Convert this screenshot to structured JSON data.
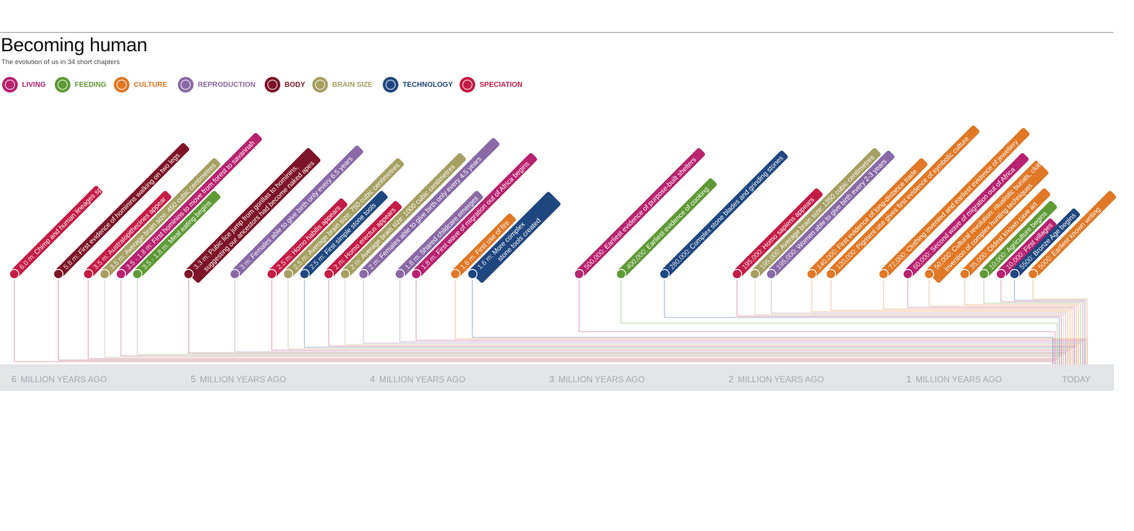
{
  "header": {
    "title": "Becoming human",
    "subtitle": "The evolution of us in 34 short chapters"
  },
  "legend": [
    {
      "label": "LIVING",
      "color": "#b8226f",
      "icon": "people-icon"
    },
    {
      "label": "FEEDING",
      "color": "#5f9a36",
      "icon": "food-icon"
    },
    {
      "label": "CULTURE",
      "color": "#e07826",
      "icon": "flame-icon"
    },
    {
      "label": "REPRODUCTION",
      "color": "#8a69a6",
      "icon": "reproduction-icon"
    },
    {
      "label": "BODY",
      "color": "#7d1428",
      "icon": "body-icon"
    },
    {
      "label": "BRAIN SIZE",
      "color": "#a69f62",
      "icon": "brain-icon"
    },
    {
      "label": "TECHNOLOGY",
      "color": "#1f477f",
      "icon": "tools-icon"
    },
    {
      "label": "SPECIATION",
      "color": "#c41c45",
      "icon": "speciation-icon"
    }
  ],
  "axis": {
    "ticks": [
      {
        "num": "6",
        "label": "MILLION YEARS AGO"
      },
      {
        "num": "5",
        "label": "MILLION YEARS AGO"
      },
      {
        "num": "4",
        "label": "MILLION YEARS AGO"
      },
      {
        "num": "3",
        "label": "MILLION YEARS AGO"
      },
      {
        "num": "2",
        "label": "MILLION YEARS AGO"
      },
      {
        "num": "1",
        "label": "MILLION YEARS AGO"
      }
    ],
    "end_label": "TODAY"
  },
  "events": [
    {
      "date": "6.0 m:",
      "text": "Chimp and human lineages split",
      "category": "SPECIATION"
    },
    {
      "date": "5.8 m:",
      "text": "First evidence of hominins walking on two legs",
      "category": "BODY"
    },
    {
      "date": "3.5 m:",
      "text": "Australopithecines appear",
      "category": "SPECIATION"
    },
    {
      "date": "3.5 m:",
      "text": "Average brain size: 450 cubic centimetres",
      "category": "BRAIN SIZE"
    },
    {
      "date": "3.5 - 1.8 m:",
      "text": "First hominins to move from forest to savannah",
      "category": "LIVING"
    },
    {
      "date": "3.5 - 1.8 m:",
      "text": "Meat eating begins",
      "category": "FEEDING"
    },
    {
      "date": "3.3 m:",
      "text": "Pubic lice jump from gorillas to hominins, suggesting our ancestors had become naked apes",
      "category": "BODY"
    },
    {
      "date": "3 m:",
      "text": "Females able to give birth only every 6.5 years",
      "category": "REPRODUCTION"
    },
    {
      "date": "2.5 m:",
      "text": "Homo habilis appears",
      "category": "SPECIATION"
    },
    {
      "date": "2.5 m:",
      "text": "Average brain size: 750 cubic centimetres",
      "category": "BRAIN SIZE"
    },
    {
      "date": "2.5 m:",
      "text": "First simple stone tools",
      "category": "TECHNOLOGY"
    },
    {
      "date": "2 m:",
      "text": "Homo erectus appears",
      "category": "SPECIATION"
    },
    {
      "date": "2 m:",
      "text": "Average brain size: 1000 cubic centimetres",
      "category": "BRAIN SIZE"
    },
    {
      "date": "2 m:",
      "text": "Females able to give birth only every 4.5 years",
      "category": "REPRODUCTION"
    },
    {
      "date": "1.8 m:",
      "text": "Shared childcare emerges",
      "category": "REPRODUCTION"
    },
    {
      "date": "1.8 m:",
      "text": "First wave of migration out of Africa begins",
      "category": "LIVING"
    },
    {
      "date": "1.6 m:",
      "text": "First use of fire",
      "category": "CULTURE"
    },
    {
      "date": "1.6 m:",
      "text": "More complex stone tools created",
      "category": "TECHNOLOGY"
    },
    {
      "date": "500,000:",
      "text": "Earliest evidence of purpose-built shelters",
      "category": "LIVING"
    },
    {
      "date": "400,000:",
      "text": "Earliest evidence of cooking",
      "category": "FEEDING"
    },
    {
      "date": "280,000:",
      "text": "Complex stone blades and grinding stones",
      "category": "TECHNOLOGY"
    },
    {
      "date": "195,000:",
      "text": "Homo sapiens appears",
      "category": "SPECIATION"
    },
    {
      "date": "195,000:",
      "text": "Average brain size: 1350 cubic centimetres",
      "category": "BRAIN SIZE"
    },
    {
      "date": "195,000:",
      "text": "Women able to give birth every 2-3 years",
      "category": "REPRODUCTION"
    },
    {
      "date": "140,000:",
      "text": "First evidence of long-distance trade",
      "category": "CULTURE"
    },
    {
      "date": "120,000:",
      "text": "Pigment use gives first evidence of symbolic culture",
      "category": "CULTURE"
    },
    {
      "date": "72,000:",
      "text": "Clothing invented and earliest evidence of jewellery",
      "category": "CULTURE"
    },
    {
      "date": "60,000:",
      "text": "Second wave of migration out of Africa",
      "category": "LIVING"
    },
    {
      "date": "50,000:",
      "text": "Cultural revolution: ritualistic burials, clothes-making, invention of complex hunting techniques",
      "category": "CULTURE"
    },
    {
      "date": "35,000:",
      "text": "Oldest known cave art",
      "category": "CULTURE"
    },
    {
      "date": "10,000:",
      "text": "Agriculture begins",
      "category": "FEEDING"
    },
    {
      "date": "10,000:",
      "text": "First villages",
      "category": "LIVING"
    },
    {
      "date": "5500:",
      "text": "Bronze Age begins",
      "category": "TECHNOLOGY"
    },
    {
      "date": "5000:",
      "text": "Earliest known writing",
      "category": "CULTURE"
    }
  ]
}
